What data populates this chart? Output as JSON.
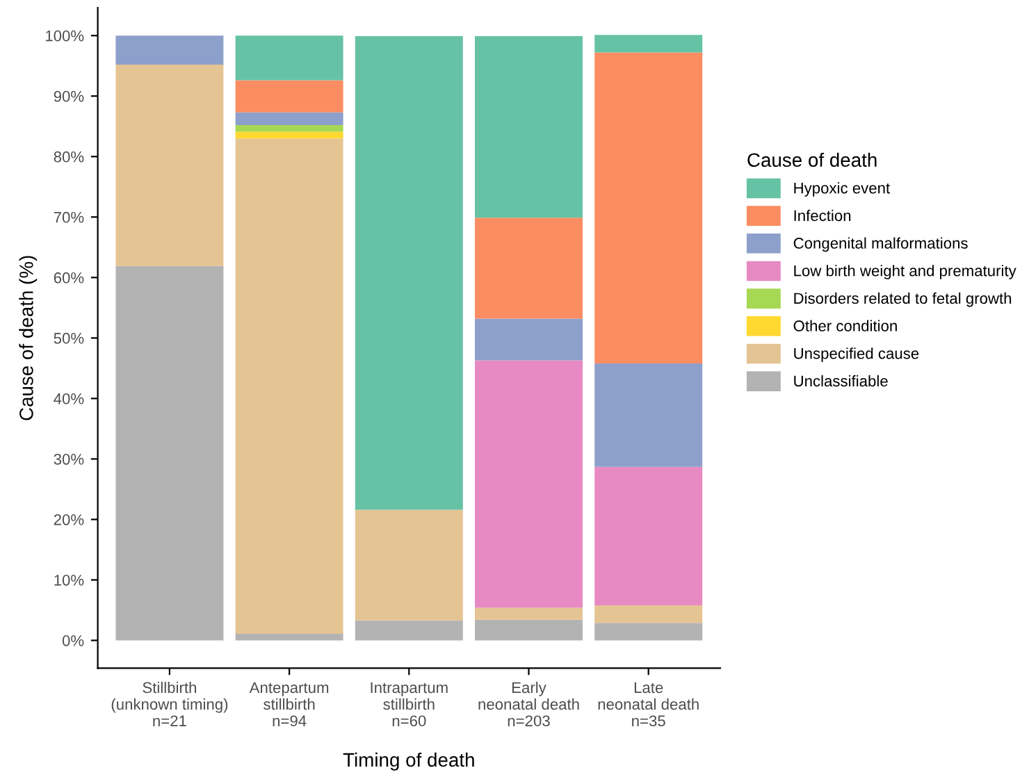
{
  "chart_data": {
    "type": "bar",
    "stacked": true,
    "xlabel": "Timing of death",
    "ylabel": "Cause of death (%)",
    "legend_title": "Cause of death",
    "legend": "right",
    "categories": [
      "Stillbirth\n(unknown timing)\nn=21",
      "Antepartum\nstillbirth\nn=94",
      "Intrapartum\nstillbirth\nn=60",
      "Early\nneonatal death\nn=203",
      "Late\nneonatal death\nn=35"
    ],
    "series": [
      {
        "name": "Unclassifiable",
        "color": "#b3b3b3",
        "values": [
          61.9,
          1.1,
          3.3,
          3.4,
          2.9
        ]
      },
      {
        "name": "Unspecified cause",
        "color": "#e5c494",
        "values": [
          33.3,
          81.9,
          18.3,
          2.0,
          2.9
        ]
      },
      {
        "name": "Other condition",
        "color": "#ffd92f",
        "values": [
          0,
          1.1,
          0,
          0,
          0
        ]
      },
      {
        "name": "Disorders related to fetal growth",
        "color": "#a6d854",
        "values": [
          0,
          1.1,
          0,
          0,
          0
        ]
      },
      {
        "name": "Low birth weight and prematurity",
        "color": "#e78ac3",
        "values": [
          0,
          0,
          0,
          40.9,
          22.9
        ]
      },
      {
        "name": "Congenital malformations",
        "color": "#8da0cb",
        "values": [
          4.8,
          2.1,
          0,
          6.9,
          17.1
        ]
      },
      {
        "name": "Infection",
        "color": "#fc8d62",
        "values": [
          0,
          5.3,
          0,
          16.7,
          51.4
        ]
      },
      {
        "name": "Hypoxic event",
        "color": "#66c2a5",
        "values": [
          0,
          7.4,
          78.3,
          30.0,
          2.9
        ]
      }
    ],
    "ylim": [
      -4.6,
      104.6
    ],
    "yticks": [
      {
        "value": 0,
        "label": "0%"
      },
      {
        "value": 10,
        "label": "10%"
      },
      {
        "value": 20,
        "label": "20%"
      },
      {
        "value": 30,
        "label": "30%"
      },
      {
        "value": 40,
        "label": "40%"
      },
      {
        "value": 50,
        "label": "50%"
      },
      {
        "value": 60,
        "label": "60%"
      },
      {
        "value": 70,
        "label": "70%"
      },
      {
        "value": 80,
        "label": "80%"
      },
      {
        "value": 90,
        "label": "90%"
      },
      {
        "value": 100,
        "label": "100%"
      }
    ],
    "grid": false
  }
}
